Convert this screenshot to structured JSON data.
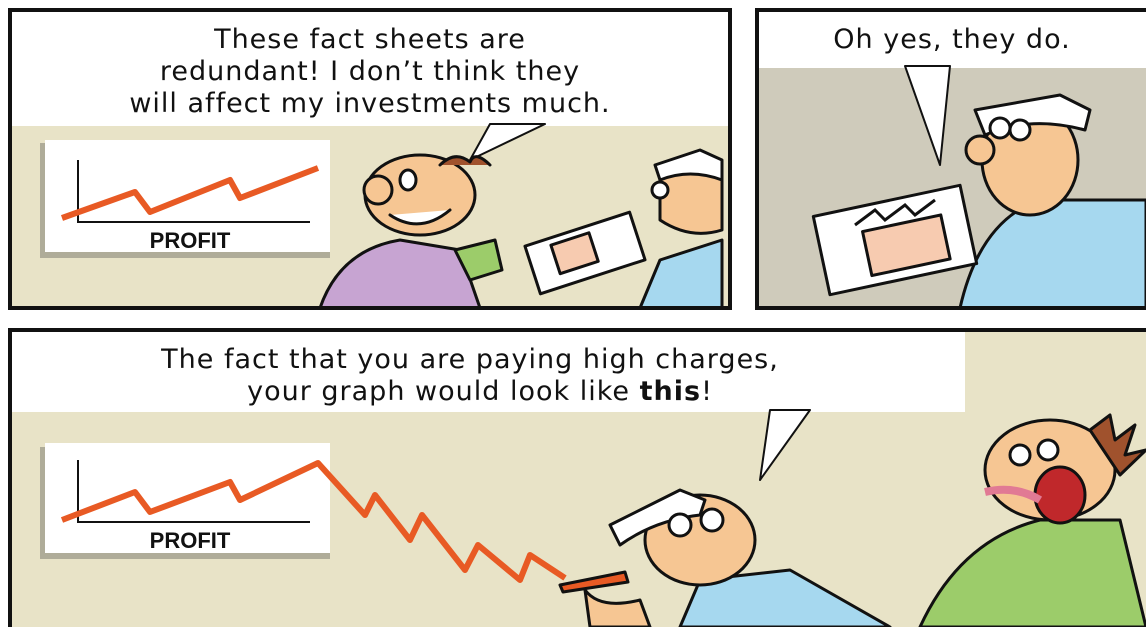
{
  "panels": [
    {
      "speech": [
        "These fact sheets are",
        "redundant! I don’t think they",
        "will affect my investments much."
      ],
      "chart_label": "PROFIT"
    },
    {
      "speech": [
        "Oh yes, they do."
      ]
    },
    {
      "speech": [
        "The fact that you are paying high charges,"
      ],
      "speech_end": {
        "text": "your graph would look like ",
        "emphasis": "this",
        "end": "!"
      },
      "chart_label": "PROFIT"
    }
  ]
}
